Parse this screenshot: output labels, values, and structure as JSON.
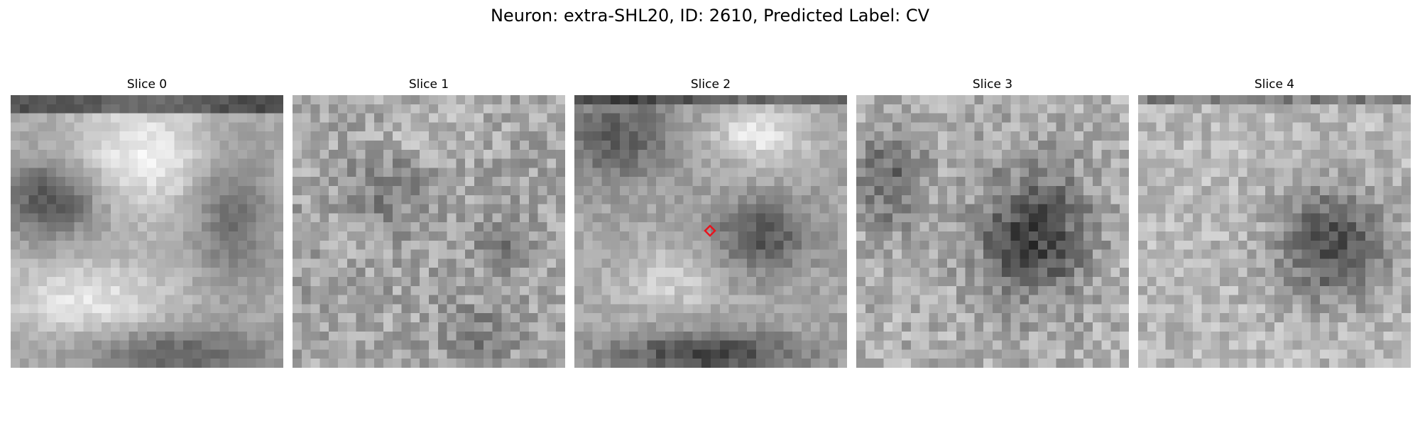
{
  "figure": {
    "title": "Neuron: extra-SHL20, ID: 2610, Predicted Label: CV"
  },
  "panels": [
    {
      "title": "Slice 0"
    },
    {
      "title": "Slice 1"
    },
    {
      "title": "Slice 2"
    },
    {
      "title": "Slice 3"
    },
    {
      "title": "Slice 4"
    }
  ],
  "marker": {
    "panel_index": 2,
    "color": "#e8141e",
    "shape": "diamond"
  },
  "colormap": "gray"
}
